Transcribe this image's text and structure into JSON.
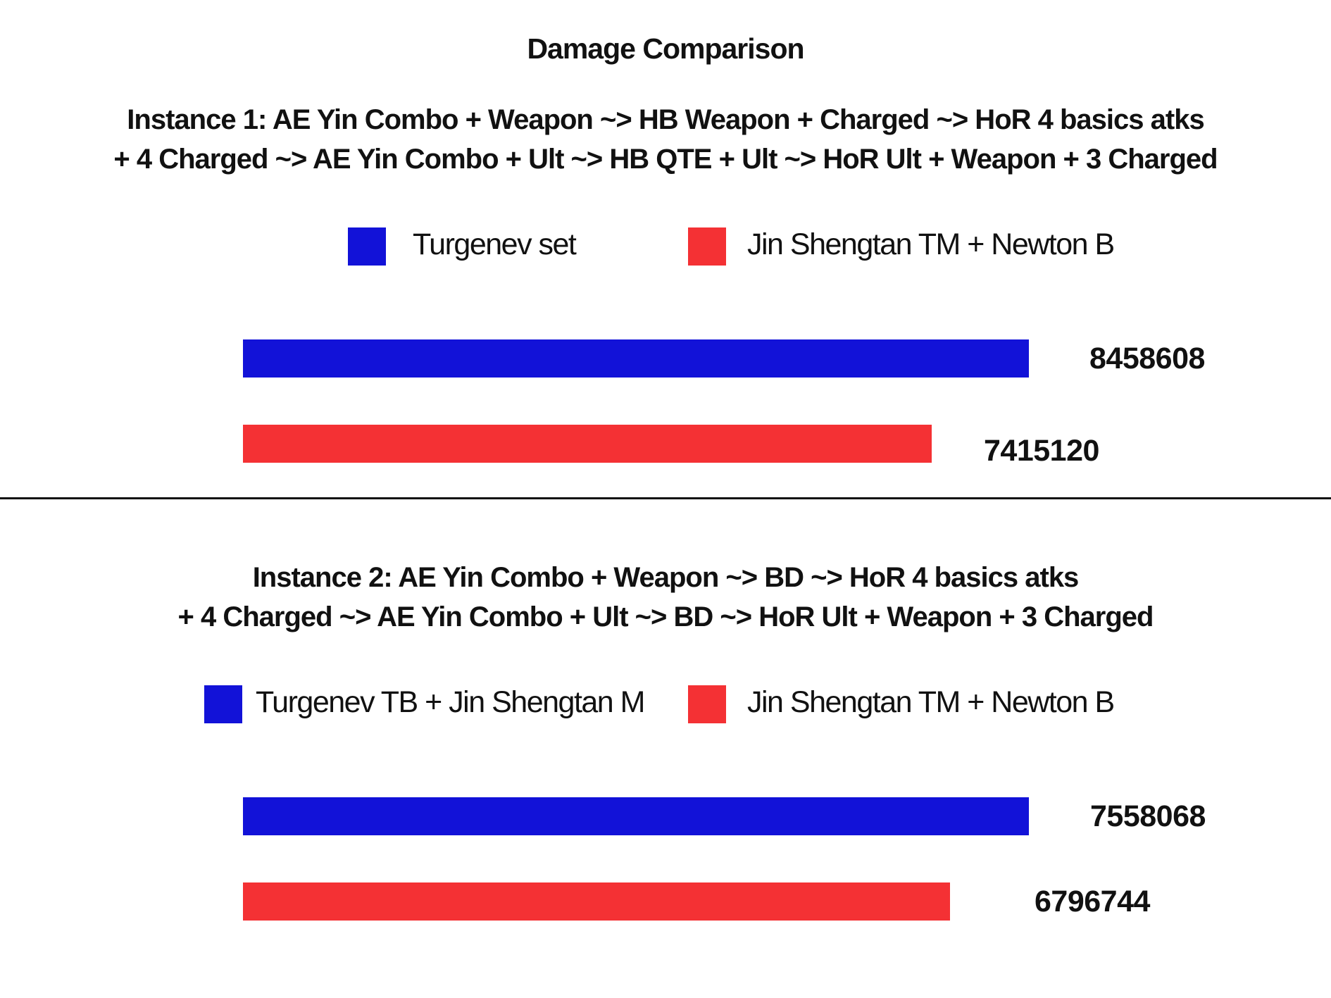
{
  "page_title": "Damage Comparison",
  "colors": {
    "series_a": "#1212d8",
    "series_b": "#f43134",
    "text": "#111111"
  },
  "chart_data": [
    {
      "type": "bar",
      "orientation": "horizontal",
      "subtitle_lines": [
        "Instance 1:  AE Yin Combo + Weapon ~> HB Weapon + Charged ~> HoR 4 basics atks",
        "+ 4 Charged ~> AE Yin Combo + Ult ~> HB QTE + Ult ~> HoR Ult + Weapon + 3 Charged"
      ],
      "legend_placement": "top",
      "series": [
        {
          "name": "Turgenev  set",
          "value": 8458608,
          "value_label": "8458608",
          "color": "#1212d8"
        },
        {
          "name": "Jin Shengtan TM + Newton B",
          "value": 7415120,
          "value_label": "7415120",
          "color": "#f43134"
        }
      ],
      "xlabel": "",
      "ylabel": "",
      "grid": false
    },
    {
      "type": "bar",
      "orientation": "horizontal",
      "subtitle_lines": [
        "Instance 2:  AE Yin Combo + Weapon ~> BD ~> HoR 4 basics atks",
        "+ 4 Charged ~> AE Yin Combo + Ult ~> BD ~> HoR Ult + Weapon + 3 Charged"
      ],
      "legend_placement": "top",
      "series": [
        {
          "name": "Turgenev TB + Jin Shengtan M",
          "value": 7558068,
          "value_label": "7558068",
          "color": "#1212d8"
        },
        {
          "name": "Jin Shengtan TM + Newton B",
          "value": 6796744,
          "value_label": "6796744",
          "color": "#f43134"
        }
      ],
      "xlabel": "",
      "ylabel": "",
      "grid": false
    }
  ]
}
